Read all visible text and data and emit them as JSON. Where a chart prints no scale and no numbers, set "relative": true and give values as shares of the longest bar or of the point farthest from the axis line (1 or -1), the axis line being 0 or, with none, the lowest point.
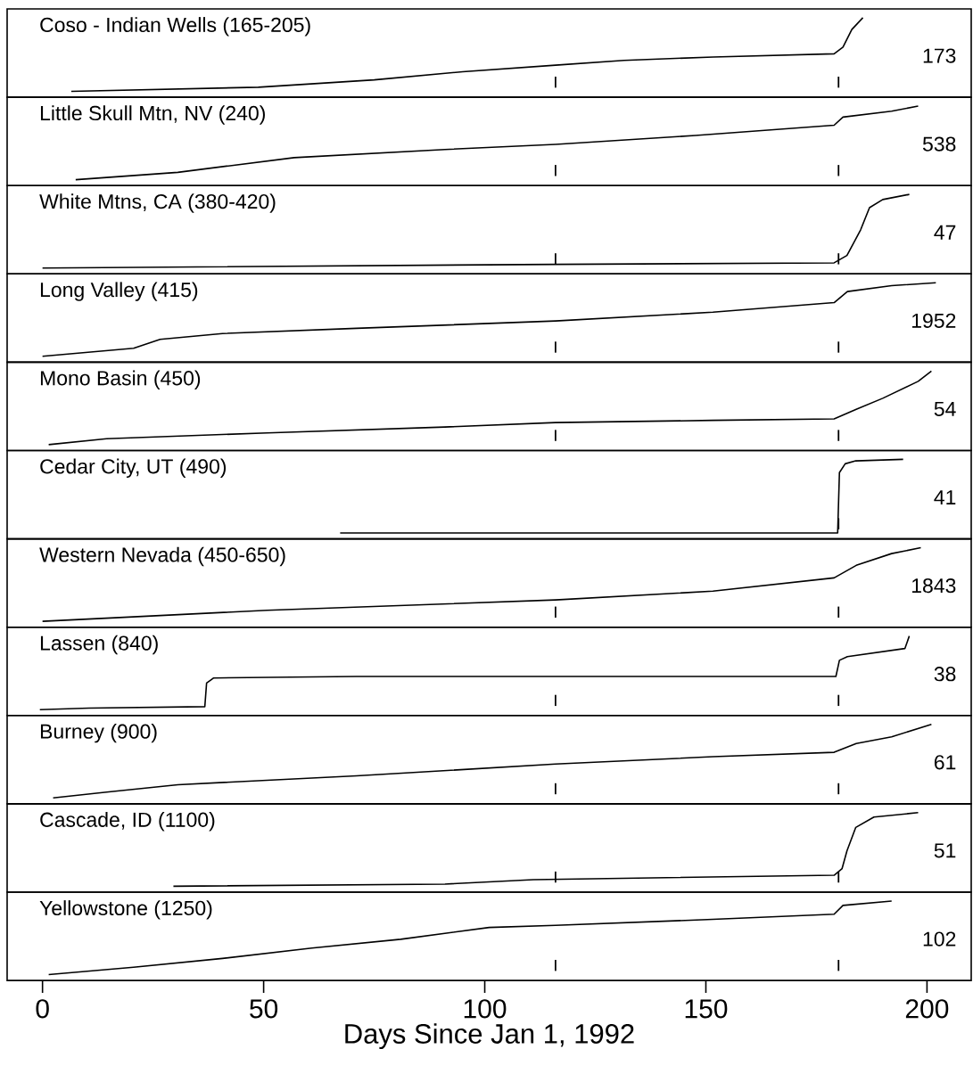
{
  "chart_data": [
    {
      "type": "line",
      "title": "Coso - Indian Wells (165-205)",
      "relative": true,
      "xlim": [
        -8,
        210
      ],
      "tick_labels": false,
      "annotations": [
        "173"
      ],
      "ref_lines": [
        {
          "axis": "x",
          "value": 116
        },
        {
          "axis": "x",
          "value": 180
        }
      ],
      "series": [
        {
          "color": "#000000",
          "x": [
            6.5,
            48.8,
            75,
            95,
            116,
            131.5,
            151.6,
            179,
            181,
            183,
            185.5
          ],
          "values": [
            0,
            0.056,
            0.156,
            0.267,
            0.356,
            0.42,
            0.467,
            0.51,
            0.6,
            0.84,
            1
          ]
        }
      ]
    },
    {
      "type": "line",
      "title": "Little Skull Mtn, NV (240)",
      "relative": true,
      "xlim": [
        -8,
        210
      ],
      "tick_labels": false,
      "annotations": [
        "538"
      ],
      "ref_lines": [
        {
          "axis": "x",
          "value": 116
        },
        {
          "axis": "x",
          "value": 180
        }
      ],
      "series": [
        {
          "color": "#000000",
          "x": [
            7.5,
            30.6,
            56.9,
            91,
            116,
            147.6,
            179,
            181,
            192,
            198
          ],
          "values": [
            0,
            0.1,
            0.3,
            0.41,
            0.48,
            0.6,
            0.74,
            0.85,
            0.93,
            1
          ]
        }
      ]
    },
    {
      "type": "line",
      "title": "White Mtns, CA (380-420)",
      "relative": true,
      "xlim": [
        -8,
        210
      ],
      "tick_labels": false,
      "annotations": [
        "47"
      ],
      "ref_lines": [
        {
          "axis": "x",
          "value": 116
        },
        {
          "axis": "x",
          "value": 180
        }
      ],
      "series": [
        {
          "color": "#000000",
          "x": [
            0,
            116,
            179,
            181.9,
            185,
            187,
            190,
            196
          ],
          "values": [
            0,
            0.05,
            0.07,
            0.17,
            0.52,
            0.82,
            0.93,
            1
          ]
        }
      ]
    },
    {
      "type": "line",
      "title": "Long Valley (415)",
      "relative": true,
      "xlim": [
        -8,
        210
      ],
      "tick_labels": false,
      "annotations": [
        "1952"
      ],
      "ref_lines": [
        {
          "axis": "x",
          "value": 116
        },
        {
          "axis": "x",
          "value": 180
        }
      ],
      "series": [
        {
          "color": "#000000",
          "x": [
            0,
            20.6,
            26.6,
            40.7,
            71,
            116,
            151.6,
            179,
            182,
            192,
            202
          ],
          "values": [
            0,
            0.11,
            0.23,
            0.31,
            0.38,
            0.48,
            0.6,
            0.73,
            0.88,
            0.96,
            1
          ]
        }
      ]
    },
    {
      "type": "line",
      "title": "Mono Basin (450)",
      "relative": true,
      "xlim": [
        -8,
        210
      ],
      "tick_labels": false,
      "annotations": [
        "54"
      ],
      "ref_lines": [
        {
          "axis": "x",
          "value": 116
        },
        {
          "axis": "x",
          "value": 180
        }
      ],
      "series": [
        {
          "color": "#000000",
          "x": [
            1.4,
            14.5,
            50.8,
            91,
            116,
            151.6,
            179,
            184,
            190,
            198,
            201
          ],
          "values": [
            0,
            0.08,
            0.16,
            0.24,
            0.3,
            0.33,
            0.35,
            0.48,
            0.63,
            0.86,
            1
          ]
        }
      ]
    },
    {
      "type": "line",
      "title": "Cedar City, UT (490)",
      "relative": true,
      "xlim": [
        -8,
        210
      ],
      "tick_labels": false,
      "annotations": [
        "41"
      ],
      "ref_lines": [
        {
          "axis": "x",
          "value": 180
        }
      ],
      "series": [
        {
          "color": "#000000",
          "x": [
            67.3,
            179.8,
            180.2,
            181.5,
            183.9,
            194.6
          ],
          "values": [
            0,
            0,
            0.82,
            0.94,
            0.98,
            1
          ]
        }
      ]
    },
    {
      "type": "line",
      "title": "Western Nevada (450-650)",
      "relative": true,
      "xlim": [
        -8,
        210
      ],
      "tick_labels": false,
      "annotations": [
        "1843"
      ],
      "ref_lines": [
        {
          "axis": "x",
          "value": 116
        },
        {
          "axis": "x",
          "value": 180
        }
      ],
      "series": [
        {
          "color": "#000000",
          "x": [
            0,
            50.8,
            116,
            151.6,
            179,
            184,
            192,
            198.6
          ],
          "values": [
            0,
            0.15,
            0.29,
            0.41,
            0.59,
            0.76,
            0.92,
            1
          ]
        }
      ]
    },
    {
      "type": "line",
      "title": "Lassen (840)",
      "relative": true,
      "xlim": [
        -8,
        210
      ],
      "tick_labels": false,
      "annotations": [
        "38"
      ],
      "ref_lines": [
        {
          "axis": "x",
          "value": 116
        },
        {
          "axis": "x",
          "value": 180
        }
      ],
      "series": [
        {
          "color": "#000000",
          "x": [
            -0.6,
            10.5,
            36.7,
            37.1,
            38.7,
            71,
            179.4,
            180.2,
            182,
            195,
            196
          ],
          "values": [
            0,
            0.02,
            0.04,
            0.36,
            0.43,
            0.45,
            0.45,
            0.67,
            0.72,
            0.83,
            1
          ]
        }
      ]
    },
    {
      "type": "line",
      "title": "Burney (900)",
      "relative": true,
      "xlim": [
        -8,
        210
      ],
      "tick_labels": false,
      "annotations": [
        "61"
      ],
      "ref_lines": [
        {
          "axis": "x",
          "value": 116
        },
        {
          "axis": "x",
          "value": 180
        }
      ],
      "series": [
        {
          "color": "#000000",
          "x": [
            2.4,
            14.5,
            30.6,
            71,
            116,
            151.6,
            179,
            184,
            192,
            201
          ],
          "values": [
            0,
            0.08,
            0.18,
            0.3,
            0.46,
            0.56,
            0.62,
            0.74,
            0.83,
            1
          ]
        }
      ]
    },
    {
      "type": "line",
      "title": "Cascade, ID (1100)",
      "relative": true,
      "xlim": [
        -8,
        210
      ],
      "tick_labels": false,
      "annotations": [
        "51"
      ],
      "ref_lines": [
        {
          "axis": "x",
          "value": 116
        },
        {
          "axis": "x",
          "value": 180
        }
      ],
      "series": [
        {
          "color": "#000000",
          "x": [
            29.6,
            91,
            111,
            179,
            180.8,
            181.9,
            183.9,
            188,
            198
          ],
          "values": [
            0,
            0.03,
            0.09,
            0.15,
            0.24,
            0.48,
            0.8,
            0.94,
            1
          ]
        }
      ]
    },
    {
      "type": "line",
      "title": "Yellowstone (1250)",
      "relative": true,
      "xlim": [
        -8,
        210
      ],
      "xticks": [
        0,
        50,
        100,
        150,
        200
      ],
      "xlabel": "Days Since Jan 1, 1992",
      "tick_labels": "x",
      "annotations": [
        "102"
      ],
      "ref_lines": [
        {
          "axis": "x",
          "value": 116
        },
        {
          "axis": "x",
          "value": 180
        }
      ],
      "series": [
        {
          "color": "#000000",
          "x": [
            1.4,
            20.6,
            40.7,
            60.9,
            81,
            101,
            116,
            151.6,
            179,
            181,
            192
          ],
          "values": [
            0,
            0.1,
            0.22,
            0.36,
            0.48,
            0.64,
            0.67,
            0.75,
            0.82,
            0.94,
            1
          ]
        }
      ]
    }
  ]
}
